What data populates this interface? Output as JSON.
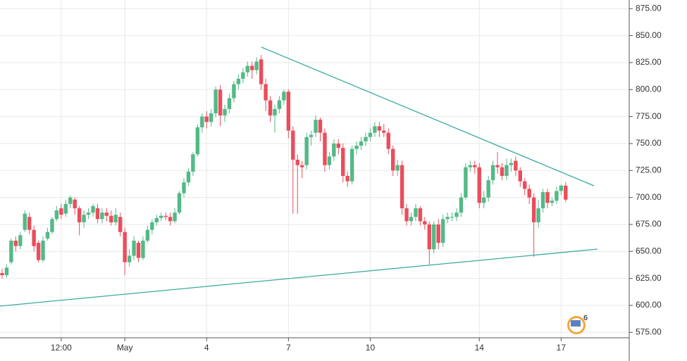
{
  "chart_data": {
    "type": "candlestick",
    "categories": [
      null,
      null,
      null,
      null,
      null,
      null,
      null,
      null,
      null,
      null,
      null,
      null,
      null,
      "12:00",
      null,
      null,
      null,
      null,
      null,
      null,
      null,
      null,
      null,
      null,
      null,
      null,
      null,
      "May",
      null,
      null,
      null,
      null,
      null,
      null,
      null,
      null,
      null,
      null,
      null,
      null,
      null,
      null,
      null,
      null,
      null,
      "4",
      null,
      null,
      null,
      null,
      null,
      null,
      null,
      null,
      null,
      null,
      null,
      null,
      null,
      null,
      null,
      null,
      null,
      "7",
      null,
      null,
      null,
      null,
      null,
      null,
      null,
      null,
      null,
      null,
      null,
      null,
      null,
      null,
      null,
      null,
      null,
      "10",
      null,
      null,
      null,
      null,
      null,
      null,
      null,
      null,
      null,
      null,
      null,
      null,
      null,
      null,
      null,
      null,
      null,
      null,
      null,
      null,
      null,
      null,
      null,
      "14",
      null,
      null,
      null,
      null,
      null,
      null,
      null,
      null,
      null,
      null,
      null,
      null,
      null,
      null,
      null,
      null,
      null,
      "17",
      null
    ],
    "open": [
      630,
      628,
      640,
      660,
      655,
      670,
      682,
      670,
      658,
      642,
      662,
      668,
      680,
      690,
      685,
      694,
      698,
      690,
      677,
      684,
      686,
      690,
      680,
      686,
      683,
      677,
      682,
      668,
      640,
      646,
      658,
      644,
      660,
      670,
      677,
      681,
      683,
      682,
      678,
      686,
      704,
      714,
      724,
      740,
      765,
      775,
      770,
      778,
      800,
      776,
      782,
      792,
      805,
      810,
      816,
      822,
      818,
      828,
      805,
      790,
      776,
      782,
      790,
      798,
      762,
      735,
      730,
      730,
      756,
      760,
      772,
      760,
      730,
      738,
      750,
      746,
      720,
      715,
      745,
      748,
      752,
      756,
      760,
      766,
      762,
      760,
      745,
      725,
      730,
      690,
      678,
      682,
      690,
      678,
      675,
      652,
      675,
      658,
      680,
      682,
      682,
      686,
      700,
      728,
      730,
      728,
      695,
      700,
      716,
      730,
      728,
      720,
      730,
      734,
      725,
      715,
      708,
      700,
      677,
      690,
      705,
      695,
      697,
      706,
      711
    ],
    "close": [
      628,
      635,
      660,
      655,
      665,
      685,
      670,
      655,
      642,
      660,
      668,
      680,
      688,
      684,
      694,
      700,
      690,
      677,
      684,
      686,
      692,
      680,
      686,
      683,
      677,
      684,
      668,
      640,
      646,
      660,
      644,
      660,
      670,
      677,
      681,
      683,
      682,
      678,
      686,
      704,
      714,
      724,
      740,
      765,
      775,
      770,
      778,
      800,
      776,
      782,
      792,
      805,
      810,
      816,
      822,
      818,
      826,
      805,
      790,
      776,
      782,
      790,
      798,
      762,
      735,
      730,
      728,
      756,
      758,
      772,
      760,
      730,
      738,
      750,
      746,
      720,
      715,
      745,
      748,
      752,
      756,
      760,
      766,
      762,
      760,
      745,
      725,
      730,
      690,
      678,
      682,
      690,
      678,
      675,
      652,
      675,
      658,
      680,
      682,
      682,
      686,
      700,
      728,
      730,
      728,
      695,
      700,
      716,
      730,
      728,
      720,
      730,
      732,
      725,
      715,
      708,
      700,
      677,
      690,
      705,
      695,
      697,
      706,
      711,
      698
    ],
    "high": [
      634,
      638,
      662,
      664,
      668,
      688,
      686,
      674,
      660,
      664,
      672,
      682,
      692,
      694,
      698,
      702,
      700,
      692,
      688,
      690,
      694,
      694,
      690,
      690,
      688,
      690,
      686,
      672,
      652,
      664,
      660,
      664,
      674,
      680,
      684,
      686,
      686,
      686,
      690,
      706,
      718,
      727,
      742,
      768,
      778,
      780,
      782,
      803,
      804,
      786,
      796,
      808,
      814,
      820,
      826,
      826,
      830,
      832,
      810,
      794,
      786,
      794,
      800,
      800,
      766,
      740,
      734,
      760,
      762,
      776,
      774,
      764,
      742,
      754,
      754,
      750,
      724,
      748,
      752,
      756,
      760,
      764,
      770,
      770,
      768,
      764,
      748,
      735,
      734,
      694,
      686,
      694,
      692,
      682,
      678,
      678,
      680,
      684,
      686,
      686,
      690,
      704,
      732,
      734,
      734,
      732,
      706,
      720,
      734,
      742,
      732,
      736,
      736,
      738,
      728,
      718,
      712,
      704,
      698,
      708,
      708,
      700,
      710,
      712,
      714
    ],
    "low": [
      625,
      626,
      638,
      650,
      652,
      668,
      666,
      650,
      640,
      640,
      660,
      666,
      678,
      680,
      682,
      690,
      684,
      665,
      672,
      680,
      682,
      676,
      676,
      678,
      674,
      674,
      664,
      628,
      636,
      642,
      640,
      642,
      658,
      666,
      674,
      678,
      679,
      674,
      676,
      684,
      700,
      711,
      720,
      738,
      760,
      764,
      766,
      774,
      766,
      770,
      778,
      788,
      800,
      806,
      812,
      810,
      814,
      800,
      780,
      770,
      760,
      778,
      786,
      755,
      685,
      685,
      718,
      726,
      748,
      756,
      752,
      724,
      726,
      734,
      740,
      714,
      710,
      712,
      740,
      744,
      748,
      752,
      756,
      756,
      756,
      740,
      720,
      720,
      684,
      674,
      674,
      678,
      674,
      670,
      638,
      648,
      652,
      654,
      676,
      678,
      678,
      682,
      698,
      724,
      722,
      690,
      690,
      696,
      712,
      722,
      716,
      716,
      724,
      720,
      710,
      702,
      694,
      645,
      672,
      686,
      690,
      692,
      694,
      702,
      696
    ],
    "up_color": "#53b987",
    "down_color": "#eb4d5c",
    "ylim": [
      570,
      883
    ],
    "yticks": [
      {
        "value": 575,
        "label": "575.00"
      },
      {
        "value": 600,
        "label": "600.00"
      },
      {
        "value": 625,
        "label": "625.00"
      },
      {
        "value": 650,
        "label": "650.00"
      },
      {
        "value": 675,
        "label": "675.00"
      },
      {
        "value": 700,
        "label": "700.00"
      },
      {
        "value": 725,
        "label": "725.00"
      },
      {
        "value": 750,
        "label": "750.00"
      },
      {
        "value": 775,
        "label": "775.00"
      },
      {
        "value": 800,
        "label": "800.00"
      },
      {
        "value": 825,
        "label": "825.00"
      },
      {
        "value": 850,
        "label": "850.00"
      },
      {
        "value": 875,
        "label": "875.00"
      }
    ],
    "grid": true,
    "badge": "6"
  }
}
